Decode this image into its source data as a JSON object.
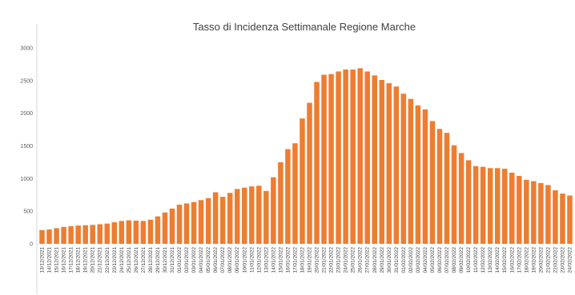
{
  "chart_data": {
    "type": "bar",
    "title": "Tasso di Incidenza Settimanale Regione Marche",
    "xlabel": "",
    "ylabel": "",
    "ylim": [
      0,
      3000
    ],
    "yticks": [
      "0",
      "500",
      "1000",
      "1500",
      "2000",
      "2500",
      "3000"
    ],
    "grid": false,
    "legend": "none",
    "bar_color": "#ED7D31",
    "categories": [
      "13/12/2021",
      "14/12/2021",
      "15/12/2021",
      "16/12/2021",
      "17/12/2021",
      "18/12/2021",
      "19/12/2021",
      "20/12/2021",
      "21/12/2021",
      "22/12/2021",
      "23/12/2021",
      "24/12/2021",
      "25/12/2021",
      "26/12/2021",
      "27/12/2021",
      "28/12/2021",
      "29/12/2021",
      "30/12/2021",
      "31/12/2021",
      "01/01/2022",
      "02/01/2022",
      "03/01/2022",
      "04/01/2022",
      "05/01/2022",
      "06/01/2022",
      "07/01/2022",
      "08/01/2022",
      "09/01/2022",
      "10/01/2022",
      "11/01/2022",
      "12/01/2022",
      "13/01/2022",
      "14/01/2022",
      "15/01/2022",
      "16/01/2022",
      "17/01/2022",
      "18/01/2022",
      "19/01/2022",
      "20/01/2022",
      "21/01/2022",
      "22/01/2022",
      "23/01/2022",
      "24/01/2022",
      "25/01/2022",
      "26/01/2022",
      "27/01/2022",
      "28/01/2022",
      "29/01/2022",
      "30/01/2022",
      "31/01/2022",
      "01/02/2022",
      "02/02/2022",
      "03/02/2022",
      "04/02/2022",
      "05/02/2022",
      "06/02/2022",
      "07/02/2022",
      "08/02/2022",
      "09/02/2022",
      "10/02/2022",
      "11/02/2022",
      "12/02/2022",
      "13/02/2022",
      "14/02/2022",
      "15/02/2022",
      "16/02/2022",
      "17/02/2022",
      "18/02/2022",
      "19/02/2022",
      "20/02/2022",
      "21/02/2022",
      "22/02/2022",
      "23/02/2022",
      "24/02/2022"
    ],
    "values": [
      210,
      220,
      240,
      260,
      270,
      280,
      285,
      290,
      300,
      310,
      330,
      350,
      360,
      355,
      350,
      370,
      420,
      480,
      540,
      600,
      620,
      640,
      670,
      700,
      790,
      720,
      780,
      840,
      860,
      880,
      890,
      810,
      1020,
      1250,
      1450,
      1540,
      1920,
      2160,
      2480,
      2590,
      2600,
      2640,
      2670,
      2670,
      2690,
      2640,
      2580,
      2510,
      2460,
      2410,
      2300,
      2220,
      2120,
      2060,
      1880,
      1760,
      1700,
      1510,
      1390,
      1280,
      1190,
      1180,
      1160,
      1160,
      1150,
      1090,
      1040,
      980,
      960,
      930,
      900,
      820,
      770,
      740
    ]
  }
}
